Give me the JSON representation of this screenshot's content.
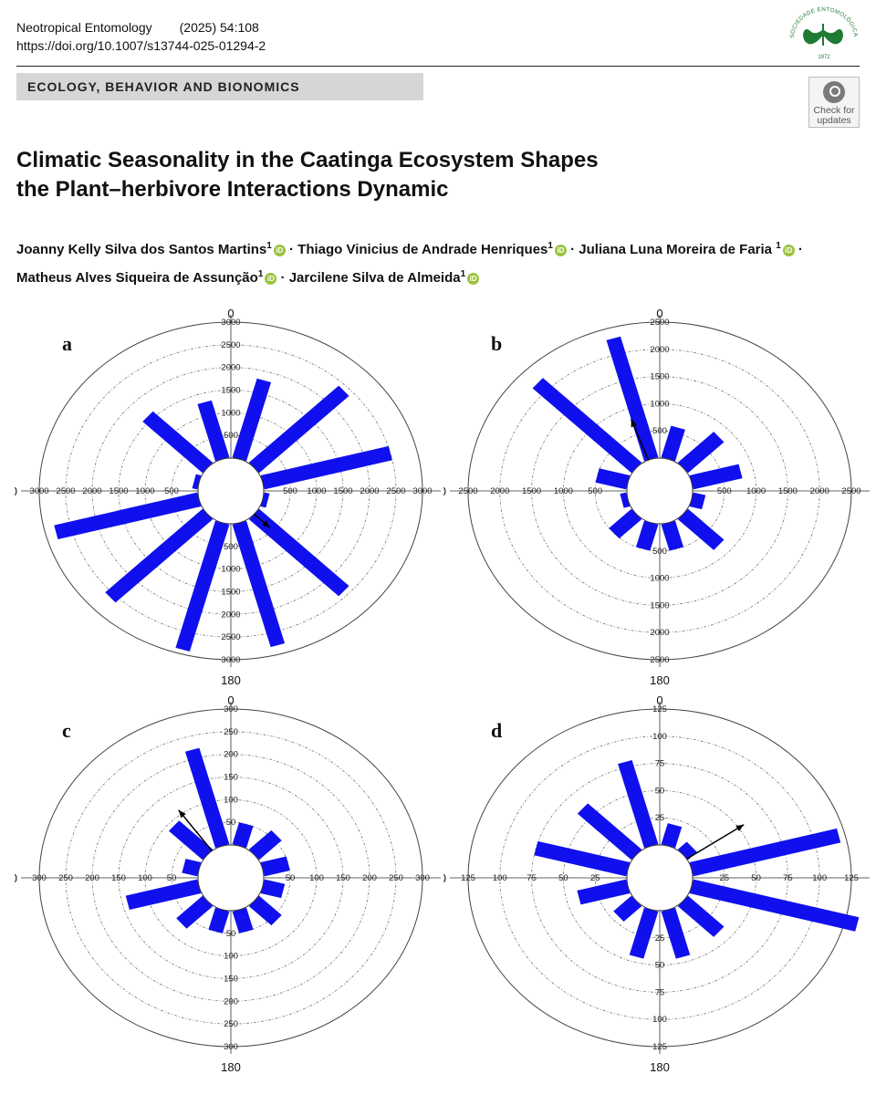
{
  "header": {
    "journal": "Neotropical Entomology",
    "volume": "(2025) 54:108",
    "doi": "https://doi.org/10.1007/s13744-025-01294-2",
    "logo_text": "SOCIEDADE ENTOMOLÓGICA DO BRASIL",
    "logo_year": "1972"
  },
  "section": "ECOLOGY, BEHAVIOR AND BIONOMICS",
  "check_updates": {
    "line1": "Check for",
    "line2": "updates"
  },
  "title_line1": "Climatic Seasonality in the Caatinga Ecosystem Shapes",
  "title_line2": "the Plant–herbivore Interactions Dynamic",
  "authors": [
    {
      "name": "Joanny Kelly Silva dos Santos Martins",
      "aff": "1"
    },
    {
      "name": "Thiago Vinicius de Andrade Henriques",
      "aff": "1"
    },
    {
      "name": "Juliana Luna Moreira de Faria",
      "aff": "1"
    },
    {
      "name": "Matheus Alves Siqueira de Assunção",
      "aff": "1"
    },
    {
      "name": "Jarcilene Silva de Almeida",
      "aff": "1"
    }
  ],
  "colors": {
    "bar": "#1010ee",
    "arrow": "#000000"
  },
  "chart_data": [
    {
      "type": "polar-bar",
      "label": "a",
      "rmax": 3000,
      "ticks": [
        500,
        1000,
        1500,
        2000,
        2500,
        3000
      ],
      "axis_labels": {
        "top": "0",
        "right": "90",
        "bottom": "180",
        "left": "270"
      },
      "angles": [
        15,
        45,
        75,
        105,
        135,
        165,
        195,
        225,
        255,
        285,
        315,
        345
      ],
      "values": [
        1800,
        2400,
        2500,
        100,
        2400,
        2800,
        2900,
        2600,
        2800,
        100,
        1600,
        1300
      ],
      "mean_vector": {
        "angle": 135,
        "length": 420
      }
    },
    {
      "type": "polar-bar",
      "label": "b",
      "rmax": 2500,
      "ticks": [
        500,
        1000,
        1500,
        2000,
        2500
      ],
      "axis_labels": {
        "top": "0",
        "right": "90",
        "bottom": "180",
        "left": "270"
      },
      "angles": [
        15,
        45,
        75,
        105,
        135,
        165,
        195,
        225,
        255,
        285,
        315,
        345
      ],
      "values": [
        600,
        800,
        800,
        200,
        800,
        500,
        500,
        500,
        100,
        500,
        2200,
        2300
      ],
      "mean_vector": {
        "angle": 340,
        "length": 800
      }
    },
    {
      "type": "polar-bar",
      "label": "c",
      "rmax": 300,
      "ticks": [
        50,
        100,
        150,
        200,
        250,
        300
      ],
      "axis_labels": {
        "top": "0",
        "right": "90",
        "bottom": "180",
        "left": "270"
      },
      "angles": [
        15,
        45,
        75,
        105,
        135,
        165,
        195,
        225,
        255,
        285,
        315,
        345
      ],
      "values": [
        50,
        60,
        50,
        40,
        60,
        50,
        50,
        70,
        140,
        30,
        90,
        220
      ],
      "mean_vector": {
        "angle": 325,
        "length": 110
      }
    },
    {
      "type": "polar-bar",
      "label": "d",
      "rmax": 125,
      "ticks": [
        25,
        50,
        75,
        100,
        125
      ],
      "axis_labels": {
        "top": "0",
        "right": "90",
        "bottom": "180",
        "left": "270"
      },
      "angles": [
        15,
        45,
        75,
        105,
        135,
        165,
        195,
        225,
        255,
        285,
        315,
        345
      ],
      "values": [
        20,
        10,
        120,
        135,
        40,
        45,
        45,
        20,
        40,
        75,
        60,
        80
      ],
      "mean_vector": {
        "angle": 55,
        "length": 55
      }
    }
  ]
}
